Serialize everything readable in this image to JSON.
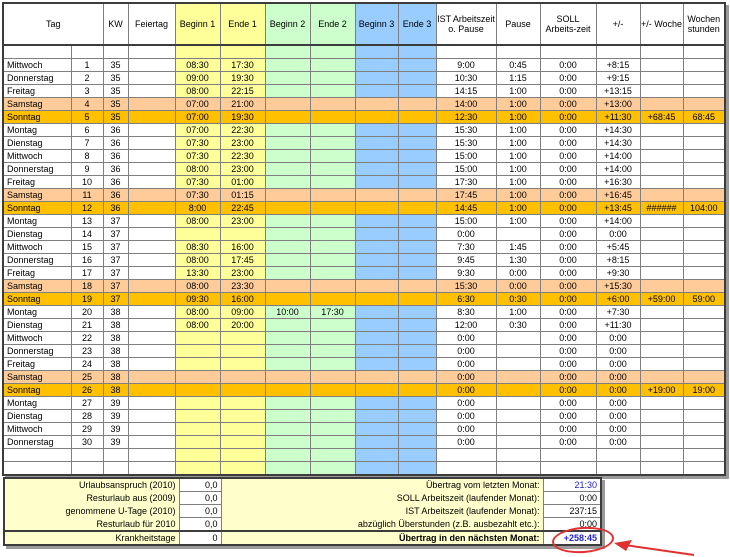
{
  "header": {
    "tag": "Tag",
    "kw": "KW",
    "feiertag": "Feiertag",
    "beginn1": "Beginn 1",
    "ende1": "Ende 1",
    "beginn2": "Beginn 2",
    "ende2": "Ende 2",
    "beginn3": "Beginn 3",
    "ende3": "Ende 3",
    "ist": "IST Arbeitszeit o. Pause",
    "pause": "Pause",
    "soll": "SOLL Arbeits-zeit",
    "diff": "+/-",
    "wdiff": "+/- Woche",
    "whours": "Wochen stunden"
  },
  "colors": {
    "block1_yellow": "#FFFF99",
    "block2_green": "#CCFFCC",
    "block3_blue": "#99CCFF",
    "saturday_row": "#FFCC99",
    "sunday_row": "#FFC000",
    "summary_bg": "#FFFFCC",
    "positive_text": "#3333B2",
    "carryover_text": "#2222CC",
    "annotation_red": "#E03030"
  },
  "rows": [
    {
      "kind": "e",
      "day": "",
      "n": "",
      "kw": "",
      "holiday": "",
      "b1": "",
      "e1": "",
      "b2": "",
      "e2": "",
      "b3": "",
      "e3": "",
      "ist": "",
      "pause": "",
      "soll": "",
      "diff": "",
      "wdiff": "",
      "whours": ""
    },
    {
      "kind": "n",
      "day": "Mittwoch",
      "n": "1",
      "kw": "35",
      "holiday": "",
      "b1": "08:30",
      "e1": "17:30",
      "b2": "",
      "e2": "",
      "b3": "",
      "e3": "",
      "ist": "9:00",
      "pause": "0:45",
      "soll": "0:00",
      "diff": "+8:15",
      "wdiff": "",
      "whours": ""
    },
    {
      "kind": "n",
      "day": "Donnerstag",
      "n": "2",
      "kw": "35",
      "holiday": "",
      "b1": "09:00",
      "e1": "19:30",
      "b2": "",
      "e2": "",
      "b3": "",
      "e3": "",
      "ist": "10:30",
      "pause": "1:15",
      "soll": "0:00",
      "diff": "+9:15",
      "wdiff": "",
      "whours": ""
    },
    {
      "kind": "n",
      "day": "Freitag",
      "n": "3",
      "kw": "35",
      "holiday": "",
      "b1": "08:00",
      "e1": "22:15",
      "b2": "",
      "e2": "",
      "b3": "",
      "e3": "",
      "ist": "14:15",
      "pause": "1:00",
      "soll": "0:00",
      "diff": "+13:15",
      "wdiff": "",
      "whours": ""
    },
    {
      "kind": "sa",
      "day": "Samstag",
      "n": "4",
      "kw": "35",
      "holiday": "",
      "b1": "07:00",
      "e1": "21:00",
      "b2": "",
      "e2": "",
      "b3": "",
      "e3": "",
      "ist": "14:00",
      "pause": "1:00",
      "soll": "0:00",
      "diff": "+13:00",
      "wdiff": "",
      "whours": ""
    },
    {
      "kind": "so",
      "day": "Sonntag",
      "n": "5",
      "kw": "35",
      "holiday": "",
      "b1": "07:00",
      "e1": "19:30",
      "b2": "",
      "e2": "",
      "b3": "",
      "e3": "",
      "ist": "12:30",
      "pause": "1:00",
      "soll": "0:00",
      "diff": "+11:30",
      "wdiff": "+68:45",
      "whours": "68:45"
    },
    {
      "kind": "n",
      "day": "Montag",
      "n": "6",
      "kw": "36",
      "holiday": "",
      "b1": "07:00",
      "e1": "22:30",
      "b2": "",
      "e2": "",
      "b3": "",
      "e3": "",
      "ist": "15:30",
      "pause": "1:00",
      "soll": "0:00",
      "diff": "+14:30",
      "wdiff": "",
      "whours": ""
    },
    {
      "kind": "n",
      "day": "Dienstag",
      "n": "7",
      "kw": "36",
      "holiday": "",
      "b1": "07:30",
      "e1": "23:00",
      "b2": "",
      "e2": "",
      "b3": "",
      "e3": "",
      "ist": "15:30",
      "pause": "1:00",
      "soll": "0:00",
      "diff": "+14:30",
      "wdiff": "",
      "whours": ""
    },
    {
      "kind": "n",
      "day": "Mittwoch",
      "n": "8",
      "kw": "36",
      "holiday": "",
      "b1": "07:30",
      "e1": "22:30",
      "b2": "",
      "e2": "",
      "b3": "",
      "e3": "",
      "ist": "15:00",
      "pause": "1:00",
      "soll": "0:00",
      "diff": "+14:00",
      "wdiff": "",
      "whours": ""
    },
    {
      "kind": "n",
      "day": "Donnerstag",
      "n": "9",
      "kw": "36",
      "holiday": "",
      "b1": "08:00",
      "e1": "23:00",
      "b2": "",
      "e2": "",
      "b3": "",
      "e3": "",
      "ist": "15:00",
      "pause": "1:00",
      "soll": "0:00",
      "diff": "+14:00",
      "wdiff": "",
      "whours": ""
    },
    {
      "kind": "n",
      "day": "Freitag",
      "n": "10",
      "kw": "36",
      "holiday": "",
      "b1": "07:30",
      "e1": "01:00",
      "b2": "",
      "e2": "",
      "b3": "",
      "e3": "",
      "ist": "17:30",
      "pause": "1:00",
      "soll": "0:00",
      "diff": "+16:30",
      "wdiff": "",
      "whours": ""
    },
    {
      "kind": "sa",
      "day": "Samstag",
      "n": "11",
      "kw": "36",
      "holiday": "",
      "b1": "07:30",
      "e1": "01:15",
      "b2": "",
      "e2": "",
      "b3": "",
      "e3": "",
      "ist": "17:45",
      "pause": "1:00",
      "soll": "0:00",
      "diff": "+16:45",
      "wdiff": "",
      "whours": ""
    },
    {
      "kind": "so",
      "day": "Sonntag",
      "n": "12",
      "kw": "36",
      "holiday": "",
      "b1": "8:00",
      "e1": "22:45",
      "b2": "",
      "e2": "",
      "b3": "",
      "e3": "",
      "ist": "14:45",
      "pause": "1:00",
      "soll": "0:00",
      "diff": "+13:45",
      "wdiff": "######",
      "whours": "104:00"
    },
    {
      "kind": "n",
      "day": "Montag",
      "n": "13",
      "kw": "37",
      "holiday": "",
      "b1": "08:00",
      "e1": "23:00",
      "b2": "",
      "e2": "",
      "b3": "",
      "e3": "",
      "ist": "15:00",
      "pause": "1:00",
      "soll": "0:00",
      "diff": "+14:00",
      "wdiff": "",
      "whours": ""
    },
    {
      "kind": "n",
      "day": "Dienstag",
      "n": "14",
      "kw": "37",
      "holiday": "",
      "b1": "",
      "e1": "",
      "b2": "",
      "e2": "",
      "b3": "",
      "e3": "",
      "ist": "0:00",
      "pause": "",
      "soll": "0:00",
      "diff": "0:00",
      "wdiff": "",
      "whours": ""
    },
    {
      "kind": "n",
      "day": "Mittwoch",
      "n": "15",
      "kw": "37",
      "holiday": "",
      "b1": "08:30",
      "e1": "16:00",
      "b2": "",
      "e2": "",
      "b3": "",
      "e3": "",
      "ist": "7:30",
      "pause": "1:45",
      "soll": "0:00",
      "diff": "+5:45",
      "wdiff": "",
      "whours": ""
    },
    {
      "kind": "n",
      "day": "Donnerstag",
      "n": "16",
      "kw": "37",
      "holiday": "",
      "b1": "08:00",
      "e1": "17:45",
      "b2": "",
      "e2": "",
      "b3": "",
      "e3": "",
      "ist": "9:45",
      "pause": "1:30",
      "soll": "0:00",
      "diff": "+8:15",
      "wdiff": "",
      "whours": ""
    },
    {
      "kind": "n",
      "day": "Freitag",
      "n": "17",
      "kw": "37",
      "holiday": "",
      "b1": "13:30",
      "e1": "23:00",
      "b2": "",
      "e2": "",
      "b3": "",
      "e3": "",
      "ist": "9:30",
      "pause": "0:00",
      "soll": "0:00",
      "diff": "+9:30",
      "wdiff": "",
      "whours": ""
    },
    {
      "kind": "sa",
      "day": "Samstag",
      "n": "18",
      "kw": "37",
      "holiday": "",
      "b1": "08:00",
      "e1": "23:30",
      "b2": "",
      "e2": "",
      "b3": "",
      "e3": "",
      "ist": "15:30",
      "pause": "0:00",
      "soll": "0:00",
      "diff": "+15:30",
      "wdiff": "",
      "whours": ""
    },
    {
      "kind": "so",
      "day": "Sonntag",
      "n": "19",
      "kw": "37",
      "holiday": "",
      "b1": "09:30",
      "e1": "16:00",
      "b2": "",
      "e2": "",
      "b3": "",
      "e3": "",
      "ist": "6:30",
      "pause": "0:30",
      "soll": "0:00",
      "diff": "+6:00",
      "wdiff": "+59:00",
      "whours": "59:00"
    },
    {
      "kind": "n",
      "day": "Montag",
      "n": "20",
      "kw": "38",
      "holiday": "",
      "b1": "08:00",
      "e1": "09:00",
      "b2": "10:00",
      "e2": "17:30",
      "b3": "",
      "e3": "",
      "ist": "8:30",
      "pause": "1:00",
      "soll": "0:00",
      "diff": "+7:30",
      "wdiff": "",
      "whours": ""
    },
    {
      "kind": "n",
      "day": "Dienstag",
      "n": "21",
      "kw": "38",
      "holiday": "",
      "b1": "08:00",
      "e1": "20:00",
      "b2": "",
      "e2": "",
      "b3": "",
      "e3": "",
      "ist": "12:00",
      "pause": "0:30",
      "soll": "0:00",
      "diff": "+11:30",
      "wdiff": "",
      "whours": ""
    },
    {
      "kind": "n",
      "day": "Mittwoch",
      "n": "22",
      "kw": "38",
      "holiday": "",
      "b1": "",
      "e1": "",
      "b2": "",
      "e2": "",
      "b3": "",
      "e3": "",
      "ist": "0:00",
      "pause": "",
      "soll": "0:00",
      "diff": "0:00",
      "wdiff": "",
      "whours": ""
    },
    {
      "kind": "n",
      "day": "Donnerstag",
      "n": "23",
      "kw": "38",
      "holiday": "",
      "b1": "",
      "e1": "",
      "b2": "",
      "e2": "",
      "b3": "",
      "e3": "",
      "ist": "0:00",
      "pause": "",
      "soll": "0:00",
      "diff": "0:00",
      "wdiff": "",
      "whours": ""
    },
    {
      "kind": "n",
      "day": "Freitag",
      "n": "24",
      "kw": "38",
      "holiday": "",
      "b1": "",
      "e1": "",
      "b2": "",
      "e2": "",
      "b3": "",
      "e3": "",
      "ist": "0:00",
      "pause": "",
      "soll": "0:00",
      "diff": "0:00",
      "wdiff": "",
      "whours": ""
    },
    {
      "kind": "sa",
      "day": "Samstag",
      "n": "25",
      "kw": "38",
      "holiday": "",
      "b1": "",
      "e1": "",
      "b2": "",
      "e2": "",
      "b3": "",
      "e3": "",
      "ist": "0:00",
      "pause": "",
      "soll": "0:00",
      "diff": "0:00",
      "wdiff": "",
      "whours": ""
    },
    {
      "kind": "so",
      "day": "Sonntag",
      "n": "26",
      "kw": "38",
      "holiday": "",
      "b1": "",
      "e1": "",
      "b2": "",
      "e2": "",
      "b3": "",
      "e3": "",
      "ist": "0:00",
      "pause": "",
      "soll": "0:00",
      "diff": "0:00",
      "wdiff": "+19:00",
      "whours": "19:00"
    },
    {
      "kind": "n",
      "day": "Montag",
      "n": "27",
      "kw": "39",
      "holiday": "",
      "b1": "",
      "e1": "",
      "b2": "",
      "e2": "",
      "b3": "",
      "e3": "",
      "ist": "0:00",
      "pause": "",
      "soll": "0:00",
      "diff": "0:00",
      "wdiff": "",
      "whours": ""
    },
    {
      "kind": "n",
      "day": "Dienstag",
      "n": "28",
      "kw": "39",
      "holiday": "",
      "b1": "",
      "e1": "",
      "b2": "",
      "e2": "",
      "b3": "",
      "e3": "",
      "ist": "0:00",
      "pause": "",
      "soll": "0:00",
      "diff": "0:00",
      "wdiff": "",
      "whours": ""
    },
    {
      "kind": "n",
      "day": "Mittwoch",
      "n": "29",
      "kw": "39",
      "holiday": "",
      "b1": "",
      "e1": "",
      "b2": "",
      "e2": "",
      "b3": "",
      "e3": "",
      "ist": "0:00",
      "pause": "",
      "soll": "0:00",
      "diff": "0:00",
      "wdiff": "",
      "whours": ""
    },
    {
      "kind": "n",
      "day": "Donnerstag",
      "n": "30",
      "kw": "39",
      "holiday": "",
      "b1": "",
      "e1": "",
      "b2": "",
      "e2": "",
      "b3": "",
      "e3": "",
      "ist": "0:00",
      "pause": "",
      "soll": "0:00",
      "diff": "0:00",
      "wdiff": "",
      "whours": ""
    },
    {
      "kind": "e",
      "day": "",
      "n": "",
      "kw": "",
      "holiday": "",
      "b1": "",
      "e1": "",
      "b2": "",
      "e2": "",
      "b3": "",
      "e3": "",
      "ist": "",
      "pause": "",
      "soll": "",
      "diff": "",
      "wdiff": "",
      "whours": ""
    },
    {
      "kind": "e",
      "day": "",
      "n": "",
      "kw": "",
      "holiday": "",
      "b1": "",
      "e1": "",
      "b2": "",
      "e2": "",
      "b3": "",
      "e3": "",
      "ist": "",
      "pause": "",
      "soll": "",
      "diff": "",
      "wdiff": "",
      "whours": ""
    }
  ],
  "summary": {
    "left": [
      {
        "label": "Urlaubsanspruch (2010)",
        "value": "0,0"
      },
      {
        "label": "Resturlaub aus (2009)",
        "value": "0,0"
      },
      {
        "label": "genommene U-Tage (2010)",
        "value": "0,0"
      },
      {
        "label": "Resturlaub für 2010",
        "value": "0,0"
      },
      {
        "label": "Krankheitstage",
        "value": "0"
      }
    ],
    "right": [
      {
        "label": "Übertrag vom letzten Monat:",
        "value": "21:30",
        "blue": true
      },
      {
        "label": "SOLL Arbeitszeit (laufender Monat):",
        "value": "0:00"
      },
      {
        "label": "IST Arbeitszeit (laufender Monat):",
        "value": "237:15"
      },
      {
        "label": "abzüglich Überstunden (z.B. ausbezahlt etc.):",
        "value": "0:00"
      },
      {
        "label": "Übertrag in den nächsten Monat:",
        "value": "+258:45",
        "blue": true,
        "bold": true,
        "circled": true
      }
    ]
  }
}
